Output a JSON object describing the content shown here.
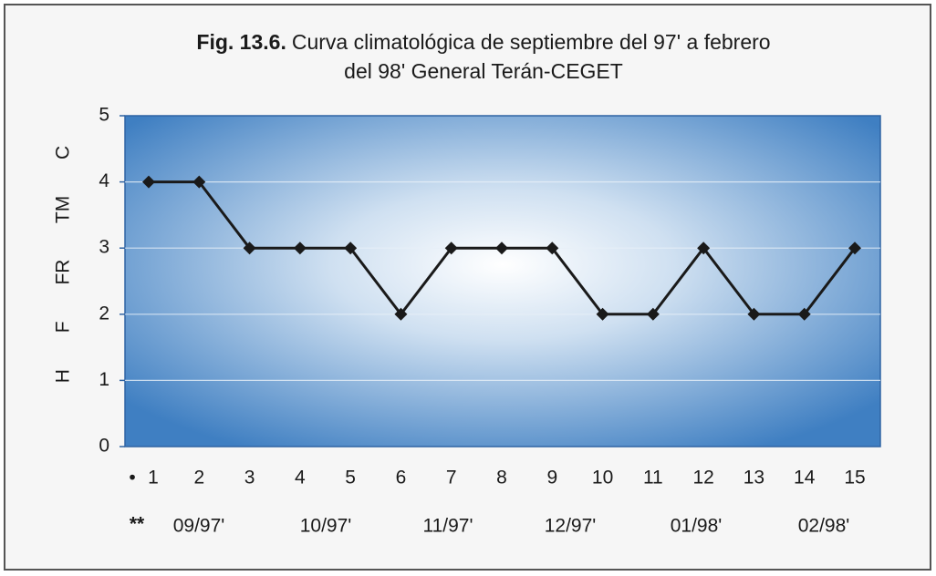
{
  "chart_data": {
    "type": "line",
    "title_prefix": "Fig. 13.6.",
    "title": [
      "Curva climatológica de septiembre del 97' a febrero",
      "del 98' General Terán-CEGET"
    ],
    "ylabel": "H F FR TM C",
    "x_marker": "•",
    "categories": [
      "1",
      "2",
      "3",
      "4",
      "5",
      "6",
      "7",
      "8",
      "9",
      "10",
      "11",
      "12",
      "13",
      "14",
      "15"
    ],
    "values": [
      4,
      4,
      3,
      3,
      3,
      2,
      3,
      3,
      3,
      2,
      2,
      3,
      2,
      2,
      3
    ],
    "color": "#1a1a1a",
    "period_marker": "**",
    "period_labels": [
      "09/97'",
      "10/97'",
      "11/97'",
      "12/97'",
      "01/98'",
      "02/98'"
    ],
    "ylim": [
      0,
      5
    ],
    "yticks": [
      0,
      1,
      2,
      3,
      4,
      5
    ],
    "grid": true
  }
}
